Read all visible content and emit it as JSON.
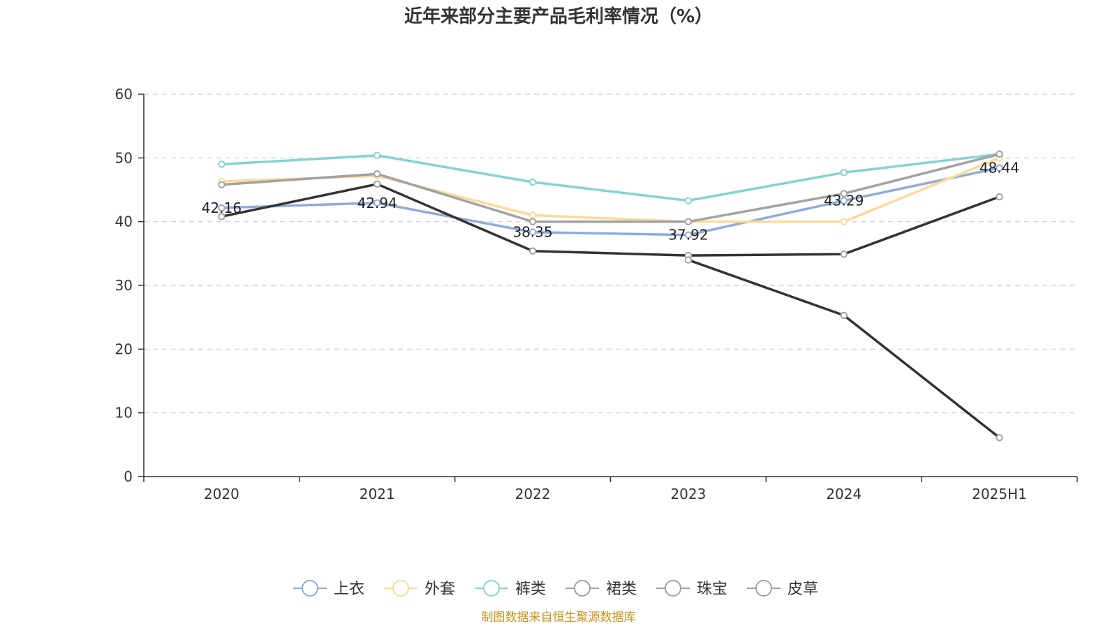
{
  "chart_data": {
    "type": "line",
    "title": "近年来部分主要产品毛利率情况（%）",
    "categories": [
      "2020",
      "2021",
      "2022",
      "2023",
      "2024",
      "2025H1"
    ],
    "ylim": [
      0,
      60
    ],
    "yticks": [
      0,
      10,
      20,
      30,
      40,
      50,
      60
    ],
    "grid": true,
    "legend_position": "bottom",
    "series": [
      {
        "name": "上衣",
        "color": "#8eacd8",
        "values": [
          42.16,
          42.94,
          38.35,
          37.92,
          43.29,
          48.44
        ],
        "labels": [
          "42.16",
          "42.94",
          "38.35",
          "37.92",
          "43.29",
          "48.44"
        ]
      },
      {
        "name": "外套",
        "color": "#fdd999",
        "values": [
          46.3,
          47.2,
          41.0,
          40.0,
          40.0,
          50.0
        ]
      },
      {
        "name": "裤类",
        "color": "#85d3d3",
        "values": [
          49.0,
          50.4,
          46.2,
          43.3,
          47.7,
          50.6
        ]
      },
      {
        "name": "裙类",
        "color": "#a2a2a2",
        "values": [
          45.8,
          47.5,
          40.0,
          40.0,
          44.4,
          50.6
        ]
      },
      {
        "name": "珠宝",
        "color": "#333333",
        "values": [
          40.8,
          45.9,
          35.4,
          34.7,
          34.9,
          43.9
        ]
      },
      {
        "name": "皮草",
        "color": "#333333",
        "values": [
          null,
          null,
          null,
          34.0,
          25.3,
          6.1
        ]
      }
    ]
  },
  "source": "制图数据来自恒生聚源数据库"
}
